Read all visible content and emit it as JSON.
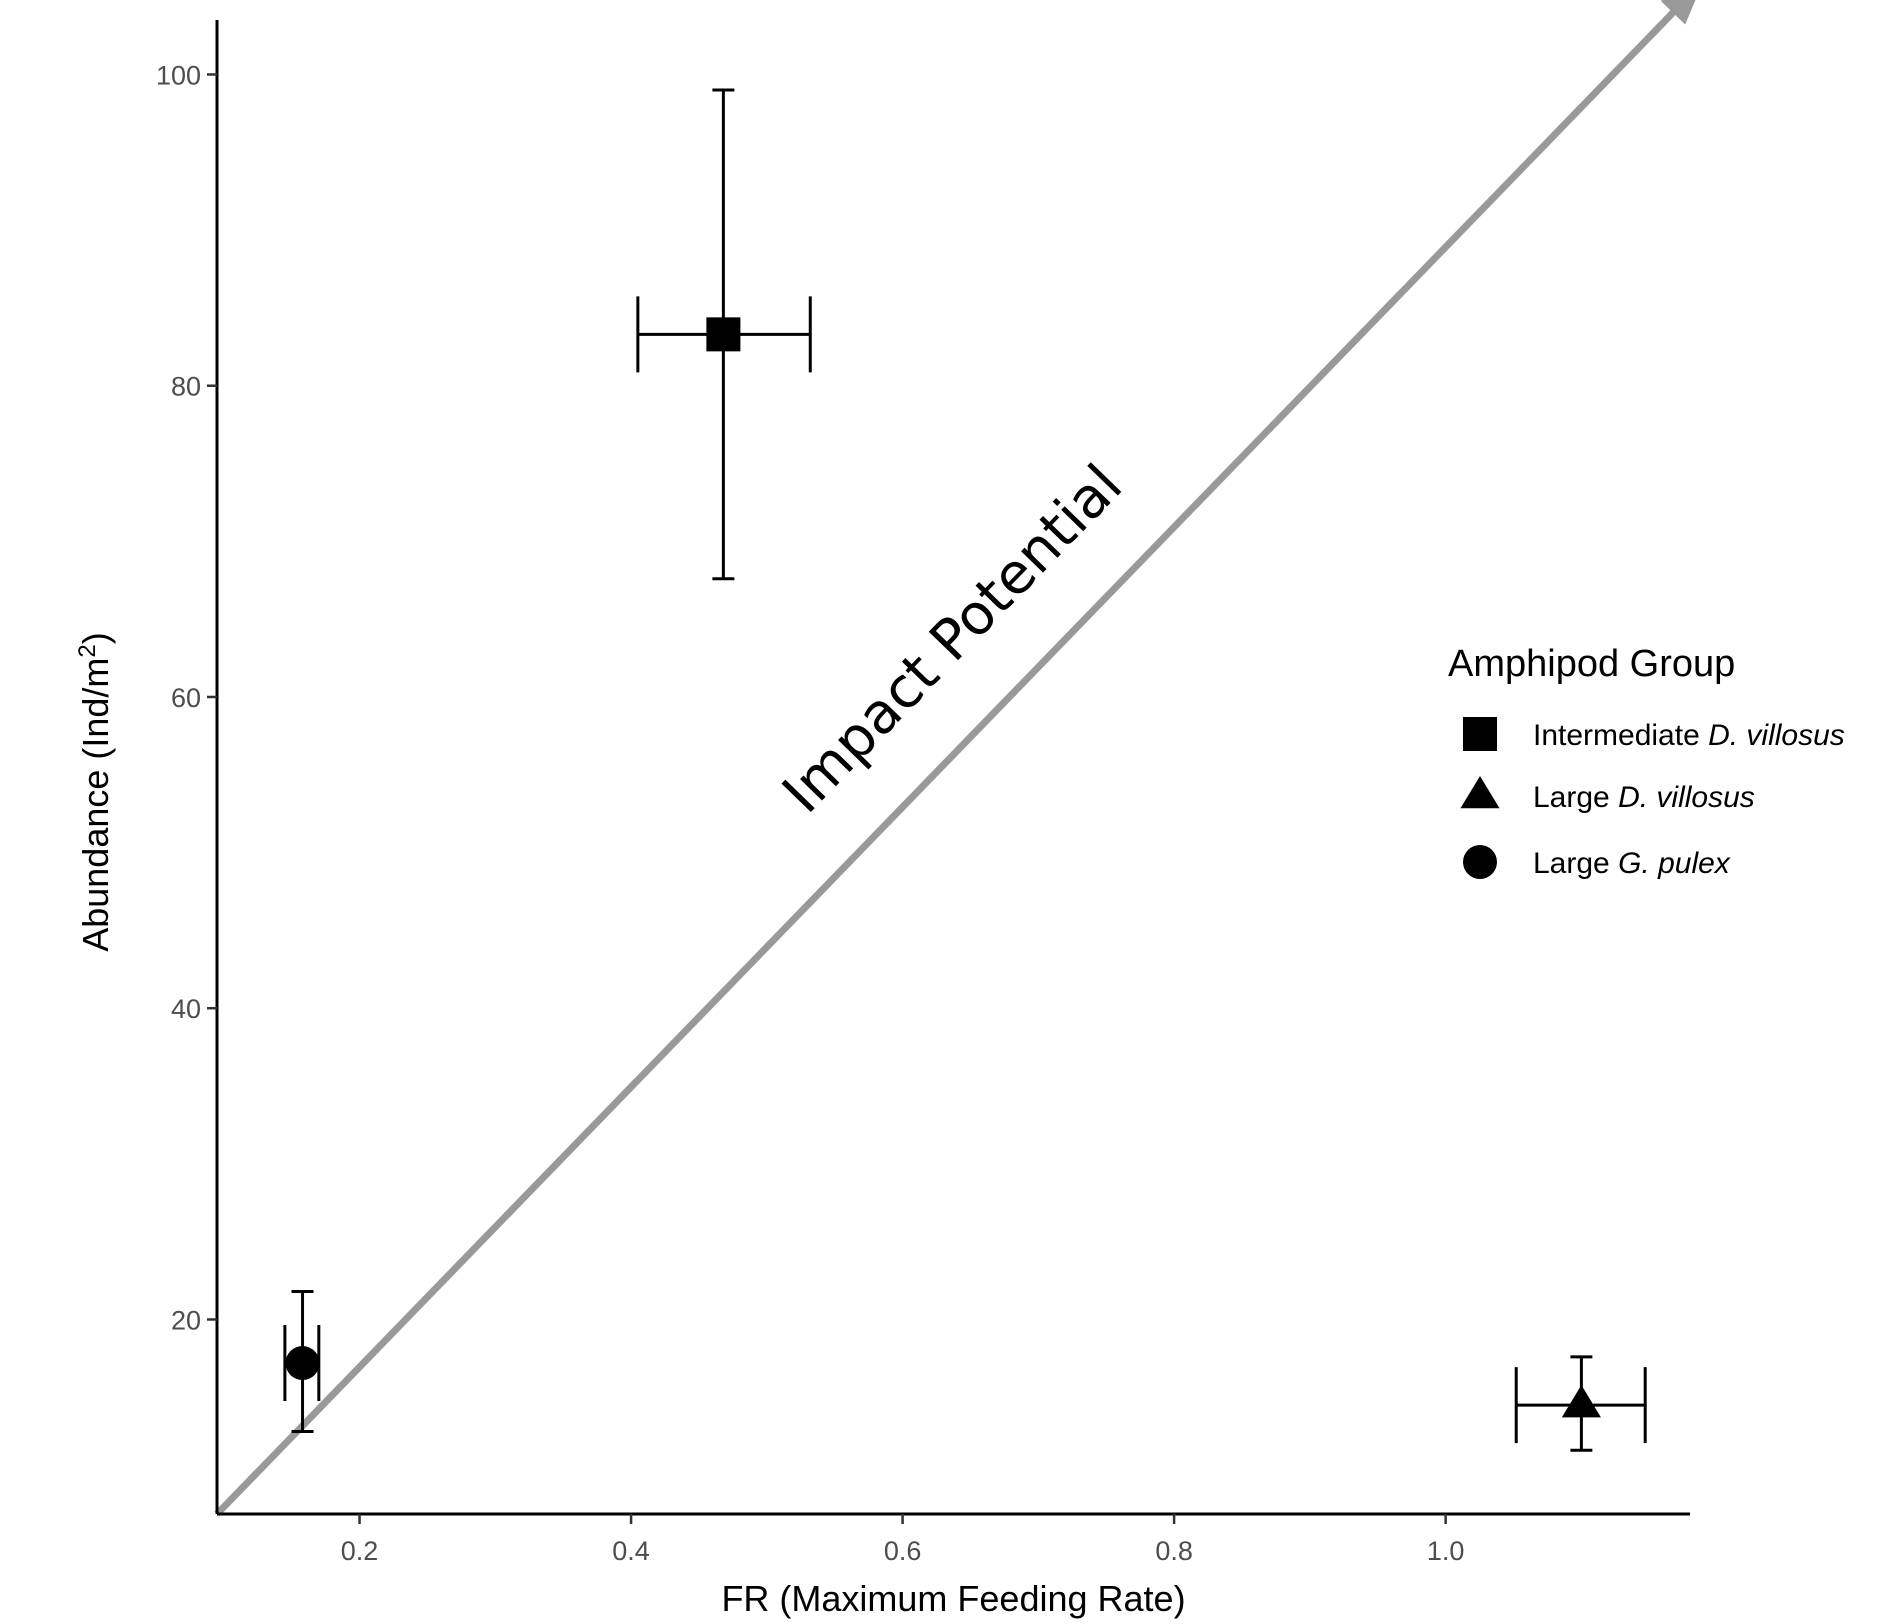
{
  "chart_data": {
    "type": "scatter",
    "title": "",
    "xlabel": "FR (Maximum Feeding Rate)",
    "ylabel_main": "Abundance (Ind/m",
    "ylabel_sup": "2",
    "ylabel_close": ")",
    "xlim": [
      0.095,
      1.18
    ],
    "ylim": [
      7.5,
      103.5
    ],
    "x_ticks": [
      0.2,
      0.4,
      0.6,
      0.8,
      1.0
    ],
    "x_tick_labels": [
      "0.2",
      "0.4",
      "0.6",
      "0.8",
      "1.0"
    ],
    "y_ticks": [
      20,
      40,
      60,
      80,
      100
    ],
    "y_tick_labels": [
      "20",
      "40",
      "60",
      "80",
      "100"
    ],
    "grid": false,
    "legend": {
      "title": "Amphipod Group",
      "placement": "right",
      "entries": [
        {
          "shape": "square",
          "plain": "Intermediate ",
          "italic": "D. villosus"
        },
        {
          "shape": "triangle",
          "plain": "Large ",
          "italic": "D. villosus"
        },
        {
          "shape": "circle",
          "plain": "Large ",
          "italic": "G. pulex"
        }
      ]
    },
    "points": [
      {
        "group": "Intermediate D. villosus",
        "shape": "square",
        "x": 0.468,
        "y": 83.3,
        "x_err": [
          0.405,
          0.532
        ],
        "y_err": [
          67.6,
          99.0
        ]
      },
      {
        "group": "Large D. villosus",
        "shape": "triangle",
        "x": 1.1,
        "y": 14.5,
        "x_err": [
          1.052,
          1.147
        ],
        "y_err": [
          11.6,
          17.6
        ]
      },
      {
        "group": "Large G. pulex",
        "shape": "circle",
        "x": 0.158,
        "y": 17.2,
        "x_err": [
          0.145,
          0.17
        ],
        "y_err": [
          12.8,
          21.8
        ]
      }
    ],
    "annotation": {
      "text": "Impact Potential",
      "arrow_from": [
        0.095,
        7.5
      ],
      "arrow_to": [
        1.19,
        106
      ],
      "color": "#999999"
    }
  }
}
